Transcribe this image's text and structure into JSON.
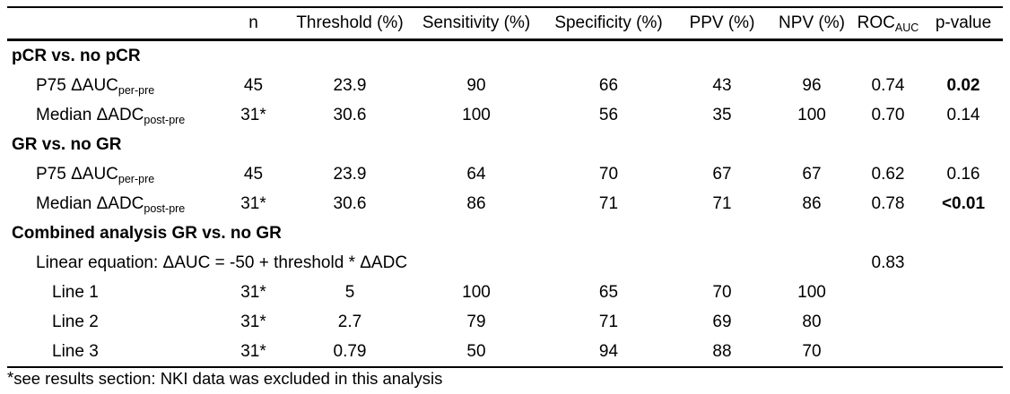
{
  "table": {
    "header": {
      "label": "",
      "columns": [
        {
          "text": "n",
          "sub": ""
        },
        {
          "text": "Threshold (%)",
          "sub": ""
        },
        {
          "text": "Sensitivity (%)",
          "sub": ""
        },
        {
          "text": "Specificity (%)",
          "sub": ""
        },
        {
          "text": "PPV (%)",
          "sub": ""
        },
        {
          "text": "NPV (%)",
          "sub": ""
        },
        {
          "text": "ROC",
          "sub": "AUC"
        },
        {
          "text": "p-value",
          "sub": ""
        }
      ]
    },
    "rows": [
      {
        "kind": "section",
        "label": "pCR vs. no pCR"
      },
      {
        "kind": "data",
        "indent": 1,
        "label": "P75 ΔAUC",
        "label_sub": "per-pre",
        "values": [
          "45",
          "23.9",
          "90",
          "66",
          "43",
          "96",
          "0.74",
          "0.02"
        ],
        "p_bold": true
      },
      {
        "kind": "data",
        "indent": 1,
        "label": "Median ΔADC",
        "label_sub": "post-pre",
        "values": [
          "31*",
          "30.6",
          "100",
          "56",
          "35",
          "100",
          "0.70",
          "0.14"
        ],
        "p_bold": false
      },
      {
        "kind": "section",
        "label": "GR vs. no GR"
      },
      {
        "kind": "data",
        "indent": 1,
        "label": "P75 ΔAUC",
        "label_sub": "per-pre",
        "values": [
          "45",
          "23.9",
          "64",
          "70",
          "67",
          "67",
          "0.62",
          "0.16"
        ],
        "p_bold": false
      },
      {
        "kind": "data",
        "indent": 1,
        "label": "Median ΔADC",
        "label_sub": "post-pre",
        "values": [
          "31*",
          "30.6",
          "86",
          "71",
          "71",
          "86",
          "0.78",
          "<0.01"
        ],
        "p_bold": true
      },
      {
        "kind": "section",
        "label": "Combined analysis GR vs. no GR"
      },
      {
        "kind": "equation",
        "indent": 1,
        "label": "Linear equation: ΔAUC = -50 + threshold * ΔADC",
        "roc": "0.83",
        "p": ""
      },
      {
        "kind": "data",
        "indent": 2,
        "label": "Line 1",
        "label_sub": "",
        "values": [
          "31*",
          "5",
          "100",
          "65",
          "70",
          "100",
          "",
          ""
        ],
        "p_bold": false
      },
      {
        "kind": "data",
        "indent": 2,
        "label": "Line 2",
        "label_sub": "",
        "values": [
          "31*",
          "2.7",
          "79",
          "71",
          "69",
          "80",
          "",
          ""
        ],
        "p_bold": false
      },
      {
        "kind": "data",
        "indent": 2,
        "label": "Line 3",
        "label_sub": "",
        "values": [
          "31*",
          "0.79",
          "50",
          "94",
          "88",
          "70",
          "",
          ""
        ],
        "p_bold": false
      }
    ]
  },
  "footnote": {
    "marker": "*",
    "text": "see results section: NKI data was excluded in this analysis"
  },
  "colors": {
    "text": "#000000",
    "background": "#ffffff",
    "rule": "#000000"
  }
}
